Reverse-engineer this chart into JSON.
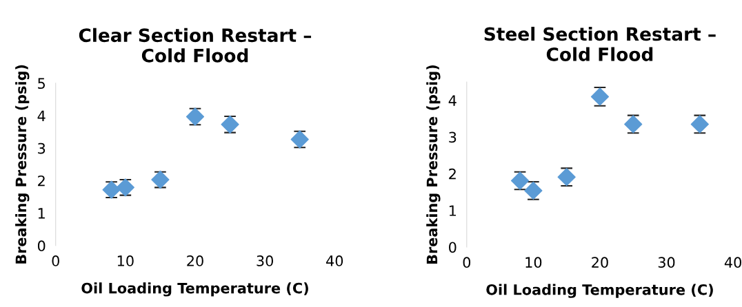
{
  "chart_data": [
    {
      "type": "scatter",
      "title": "Clear Section Restart –\nCold Flood",
      "xlabel": "Oil Loading Temperature (C)",
      "ylabel": "Breaking Pressure (psig)",
      "x": [
        8,
        10,
        15,
        20,
        25,
        35
      ],
      "values": [
        1.72,
        1.79,
        2.03,
        3.97,
        3.73,
        3.27
      ],
      "errors": [
        0.24,
        0.24,
        0.24,
        0.25,
        0.25,
        0.25
      ],
      "color": "#5b9bd5",
      "marker": "diamond",
      "xlim": [
        0,
        40
      ],
      "xticks": [
        0,
        10,
        20,
        30,
        40
      ],
      "ylim": [
        0,
        5
      ],
      "yticks": [
        0,
        1,
        2,
        3,
        4,
        5
      ],
      "grid": false
    },
    {
      "type": "scatter",
      "title": "Steel Section Restart –\nCold Flood",
      "xlabel": "Oil Loading Temperature (C)",
      "ylabel": "Breaking Pressure (psig)",
      "x": [
        8,
        10,
        15,
        20,
        25,
        35
      ],
      "values": [
        1.81,
        1.54,
        1.91,
        4.1,
        3.35,
        3.35
      ],
      "errors": [
        0.24,
        0.24,
        0.24,
        0.25,
        0.24,
        0.24
      ],
      "color": "#5b9bd5",
      "marker": "diamond",
      "xlim": [
        0,
        40
      ],
      "xticks": [
        0,
        10,
        20,
        30,
        40
      ],
      "ylim": [
        0,
        4.5
      ],
      "yticks": [
        0,
        1,
        2,
        3,
        4
      ],
      "grid": false
    }
  ]
}
